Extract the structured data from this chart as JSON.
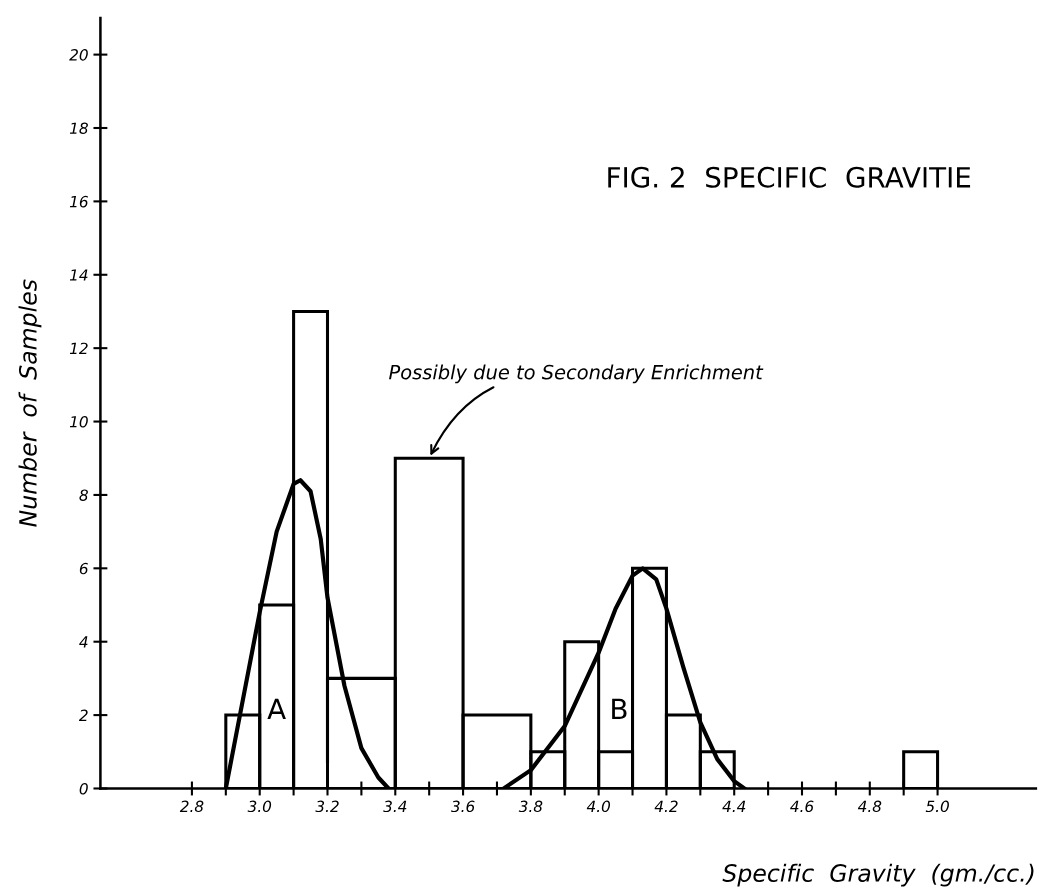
{
  "chart_data": {
    "type": "histogram",
    "title": "FIG. 2  SPECIFIC  GRAVITIE",
    "xlabel": "Specific  Gravity  (gm./cc.)",
    "ylabel": "Number  of  Samples",
    "bins": [
      2.9,
      3.0,
      3.1,
      3.2,
      3.4,
      3.6,
      3.8,
      3.9,
      4.0,
      4.1,
      4.2,
      4.3,
      4.4,
      4.9,
      5.0
    ],
    "values": [
      2,
      5,
      13,
      3,
      9,
      2,
      1,
      4,
      1,
      6,
      2,
      1,
      0,
      1
    ],
    "color": "#000000",
    "series": [
      {
        "type": "line",
        "color": "#000000",
        "x": [
          2.9,
          2.95,
          3.0,
          3.05,
          3.1,
          3.12,
          3.15,
          3.18,
          3.2,
          3.25,
          3.3,
          3.35,
          3.38
        ],
        "values": [
          0,
          2.4,
          4.8,
          7.0,
          8.3,
          8.4,
          8.1,
          6.8,
          5.2,
          2.8,
          1.1,
          0.3,
          0
        ]
      },
      {
        "type": "line",
        "color": "#000000",
        "x": [
          3.72,
          3.8,
          3.9,
          4.0,
          4.05,
          4.1,
          4.13,
          4.17,
          4.2,
          4.25,
          4.3,
          4.35,
          4.4,
          4.43
        ],
        "values": [
          0,
          0.5,
          1.7,
          3.7,
          4.9,
          5.8,
          6.0,
          5.7,
          4.9,
          3.3,
          1.8,
          0.8,
          0.2,
          0
        ]
      }
    ],
    "annotations": [
      {
        "text": "Possibly due to Secondary Enrichment",
        "x": 3.5,
        "y": 9
      },
      "A",
      "B"
    ],
    "xlim": [
      2.53,
      5.29
    ],
    "ylim": [
      0,
      21
    ],
    "xticks": [
      2.8,
      {
        "value": 2.9,
        "label": null
      },
      {
        "value": 3.0,
        "label": "3.0"
      },
      {
        "value": 3.1,
        "label": null
      },
      3.2,
      {
        "value": 3.3,
        "label": null
      },
      3.4,
      {
        "value": 3.5,
        "label": null
      },
      3.6,
      {
        "value": 3.7,
        "label": null
      },
      3.8,
      {
        "value": 3.9,
        "label": null
      },
      {
        "value": 4.0,
        "label": "4.0"
      },
      {
        "value": 4.1,
        "label": null
      },
      4.2,
      {
        "value": 4.3,
        "label": null
      },
      4.4,
      {
        "value": 4.5,
        "label": null
      },
      4.6,
      {
        "value": 4.7,
        "label": null
      },
      4.8,
      {
        "value": 4.9,
        "label": null
      },
      {
        "value": 5.0,
        "label": "5.0"
      }
    ],
    "yticks": [
      0,
      2,
      4,
      6,
      8,
      10,
      12,
      14,
      16,
      18,
      20
    ],
    "grid": false,
    "legend": false
  }
}
